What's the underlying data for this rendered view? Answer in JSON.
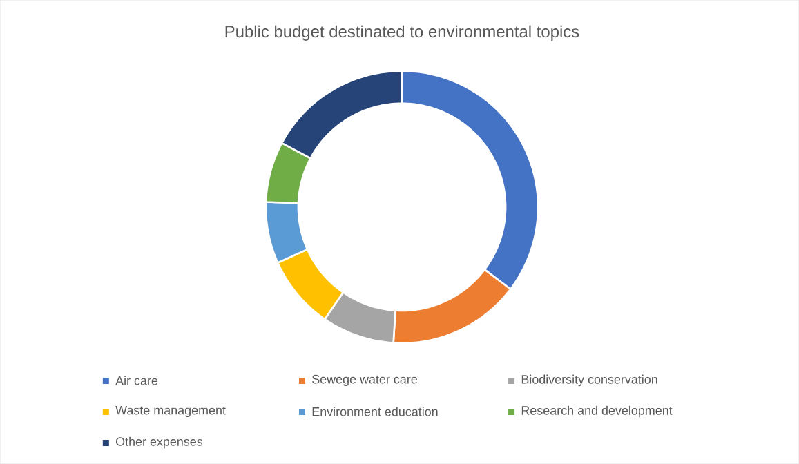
{
  "chart_data": {
    "type": "donut",
    "title": "Public budget destinated to environmental topics",
    "categories": [
      "Air care",
      "Sewege water care",
      "Biodiversity conservation",
      "Waste management",
      "Environment education",
      "Research and development",
      "Other expenses"
    ],
    "values": [
      35.3,
      15.7,
      8.6,
      8.7,
      7.3,
      7.2,
      17.2
    ],
    "colors": [
      "#4472c4",
      "#ed7d31",
      "#a5a5a5",
      "#ffc000",
      "#5b9bd5",
      "#70ad47",
      "#264478"
    ],
    "legend": "bottom"
  }
}
